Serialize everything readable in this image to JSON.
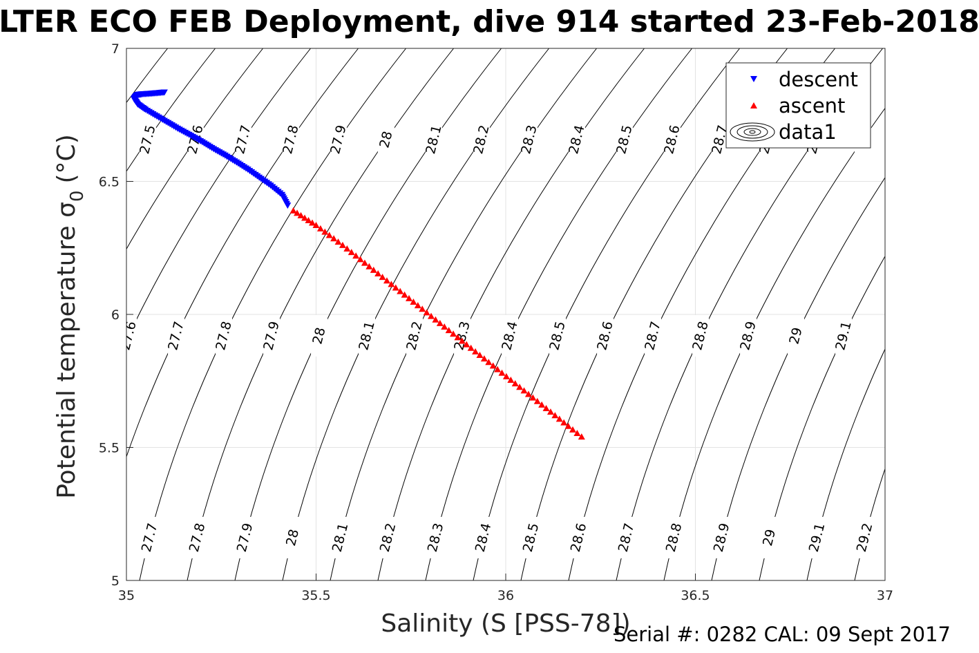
{
  "chart_data": {
    "type": "scatter",
    "title": "LTER ECO FEB Deployment, dive 914 started 23-Feb-2018",
    "xlabel": "Salinity (S [PSS-78])",
    "ylabel": "Potential temperature",
    "ylabel_symbol": "σ",
    "ylabel_sub": "0",
    "ylabel_unit": "(°C)",
    "xlim": [
      35,
      37
    ],
    "ylim": [
      5,
      7
    ],
    "x_ticks": [
      "35",
      "35.5",
      "36",
      "36.5",
      "37"
    ],
    "y_ticks": [
      "5",
      "5.5",
      "6",
      "6.5",
      "7"
    ],
    "grid": true,
    "legend_position": "top-right",
    "legend": [
      "descent",
      "ascent",
      "data1"
    ],
    "footer": "Serial #: 0282  CAL: 09 Sept 2017",
    "series": [
      {
        "name": "descent",
        "marker": "triangle-down",
        "color": "#0000ff",
        "x": [
          35.1,
          35.08,
          35.06,
          35.04,
          35.03,
          35.025,
          35.02,
          35.03,
          35.05,
          35.08,
          35.11,
          35.14,
          35.17,
          35.2,
          35.23,
          35.26,
          35.29,
          35.32,
          35.35,
          35.38,
          35.41,
          35.425
        ],
        "y": [
          6.835,
          6.832,
          6.83,
          6.828,
          6.826,
          6.82,
          6.81,
          6.79,
          6.77,
          6.745,
          6.72,
          6.695,
          6.672,
          6.648,
          6.622,
          6.598,
          6.572,
          6.545,
          6.515,
          6.485,
          6.45,
          6.41
        ]
      },
      {
        "name": "ascent",
        "marker": "triangle-up",
        "color": "#ff0000",
        "x": [
          35.44,
          35.5,
          35.57,
          35.64,
          35.71,
          35.78,
          35.85,
          35.92,
          35.99,
          36.06,
          36.13,
          36.2
        ],
        "y": [
          6.39,
          6.335,
          6.26,
          6.18,
          6.1,
          6.02,
          5.94,
          5.86,
          5.78,
          5.7,
          5.62,
          5.54
        ]
      }
    ],
    "contours": {
      "levels_top": [
        "27.5",
        "27.6",
        "27.7",
        "27.8",
        "27.9",
        "28",
        "28.1",
        "28.2",
        "28.3",
        "28.4",
        "28.5",
        "28.6",
        "28.7",
        "28.8",
        "28.9",
        "29"
      ],
      "levels_middle": [
        "27.6",
        "27.7",
        "27.8",
        "27.9",
        "28",
        "28.1",
        "28.2",
        "28.3",
        "28.4",
        "28.5",
        "28.6",
        "28.7",
        "28.8",
        "28.9",
        "29",
        "29.1"
      ],
      "levels_bottom": [
        "27.7",
        "27.8",
        "27.9",
        "28",
        "28.1",
        "28.2",
        "28.3",
        "28.4",
        "28.5",
        "28.6",
        "28.7",
        "28.8",
        "28.9",
        "29",
        "29.1",
        "29.2"
      ]
    }
  }
}
